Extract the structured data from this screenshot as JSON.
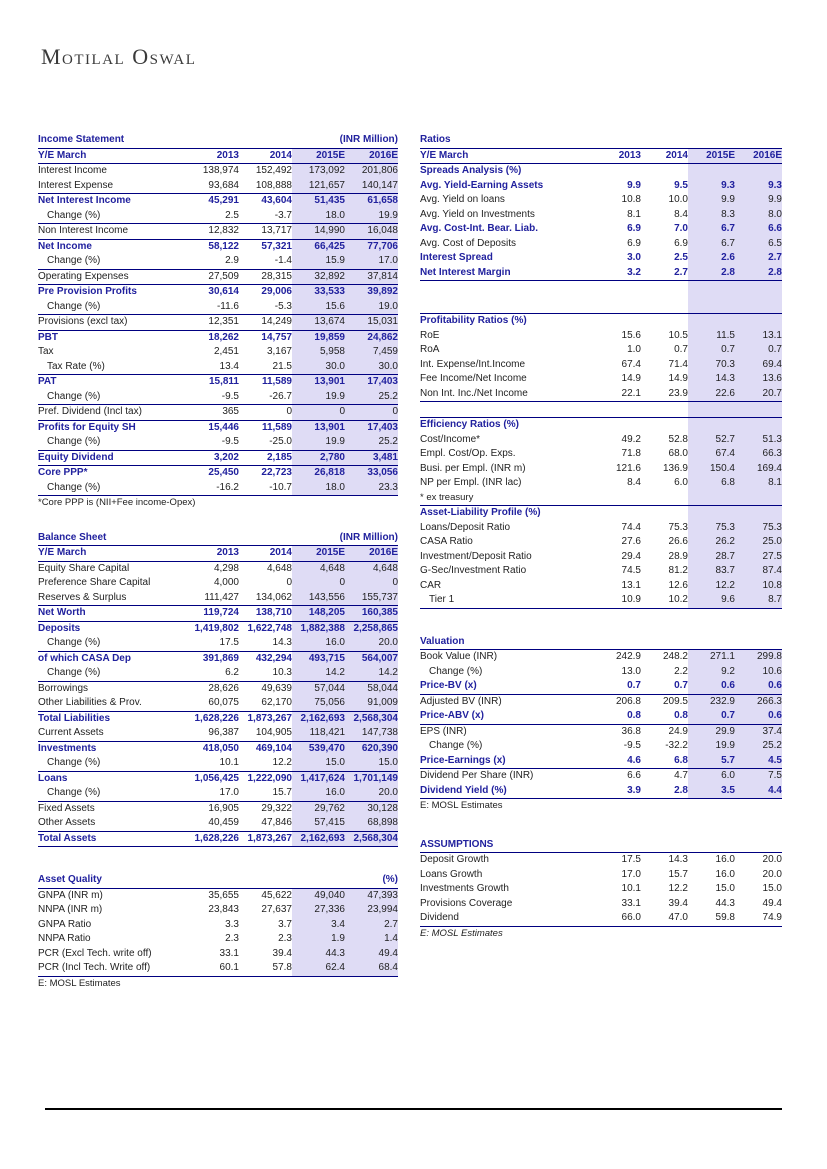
{
  "logo_text": "Motilal Oswal",
  "colors": {
    "accent_navy": "#21219e",
    "border_navy": "#000080",
    "highlight_lavender": "#dfdcf5",
    "footer_rule_black": "#000000"
  },
  "year_columns": [
    "2013",
    "2014",
    "2015E",
    "2016E"
  ],
  "tables": [
    {
      "id": "income-statement",
      "col": "left",
      "title": "Income Statement",
      "unit": "(INR Million)",
      "header_label": "Y/E March",
      "show_years": true,
      "hl": true,
      "margin_top": 0,
      "rows": [
        {
          "label": "Interest Income",
          "v": [
            "138,974",
            "152,492",
            "173,092",
            "201,806"
          ]
        },
        {
          "label": "Interest Expense",
          "v": [
            "93,684",
            "108,888",
            "121,657",
            "140,147"
          ]
        },
        {
          "label": "Net Interest Income",
          "v": [
            "45,291",
            "43,604",
            "51,435",
            "61,658"
          ],
          "b": 1,
          "bt": 1
        },
        {
          "label": "Change (%)",
          "v": [
            "2.5",
            "-3.7",
            "18.0",
            "19.9"
          ],
          "ind": 1
        },
        {
          "label": "Non Interest Income",
          "v": [
            "12,832",
            "13,717",
            "14,990",
            "16,048"
          ],
          "bt": 1
        },
        {
          "label": "Net Income",
          "v": [
            "58,122",
            "57,321",
            "66,425",
            "77,706"
          ],
          "b": 1,
          "bt": 1
        },
        {
          "label": "Change (%)",
          "v": [
            "2.9",
            "-1.4",
            "15.9",
            "17.0"
          ],
          "ind": 1
        },
        {
          "label": "Operating Expenses",
          "v": [
            "27,509",
            "28,315",
            "32,892",
            "37,814"
          ],
          "bt": 1
        },
        {
          "label": "Pre Provision Profits",
          "v": [
            "30,614",
            "29,006",
            "33,533",
            "39,892"
          ],
          "b": 1,
          "bt": 1
        },
        {
          "label": "Change (%)",
          "v": [
            "-11.6",
            "-5.3",
            "15.6",
            "19.0"
          ],
          "ind": 1
        },
        {
          "label": "Provisions (excl tax)",
          "v": [
            "12,351",
            "14,249",
            "13,674",
            "15,031"
          ],
          "bt": 1
        },
        {
          "label": "PBT",
          "v": [
            "18,262",
            "14,757",
            "19,859",
            "24,862"
          ],
          "b": 1,
          "bt": 1
        },
        {
          "label": "Tax",
          "v": [
            "2,451",
            "3,167",
            "5,958",
            "7,459"
          ]
        },
        {
          "label": "Tax Rate (%)",
          "v": [
            "13.4",
            "21.5",
            "30.0",
            "30.0"
          ],
          "ind": 1
        },
        {
          "label": "PAT",
          "v": [
            "15,811",
            "11,589",
            "13,901",
            "17,403"
          ],
          "b": 1,
          "bt": 1
        },
        {
          "label": "Change (%)",
          "v": [
            "-9.5",
            "-26.7",
            "19.9",
            "25.2"
          ],
          "ind": 1
        },
        {
          "label": "Pref. Dividend (Incl tax)",
          "v": [
            "365",
            "0",
            "0",
            "0"
          ],
          "bt": 1
        },
        {
          "label": "Profits for Equity SH",
          "v": [
            "15,446",
            "11,589",
            "13,901",
            "17,403"
          ],
          "b": 1,
          "bt": 1
        },
        {
          "label": "Change (%)",
          "v": [
            "-9.5",
            "-25.0",
            "19.9",
            "25.2"
          ],
          "ind": 1
        },
        {
          "label": "Equity Dividend",
          "v": [
            "3,202",
            "2,185",
            "2,780",
            "3,481"
          ],
          "b": 1,
          "bt": 1
        },
        {
          "label": "Core PPP*",
          "v": [
            "25,450",
            "22,723",
            "26,818",
            "33,056"
          ],
          "b": 1,
          "bt": 1
        },
        {
          "label": "Change (%)",
          "v": [
            "-16.2",
            "-10.7",
            "18.0",
            "23.3"
          ],
          "ind": 1,
          "bb": 1
        }
      ],
      "footnotes": [
        {
          "text": "*Core PPP is (NII+Fee income-Opex)",
          "italic": false
        }
      ]
    },
    {
      "id": "balance-sheet",
      "col": "left",
      "title": "Balance Sheet",
      "unit": "(INR Million)",
      "header_label": "Y/E March",
      "show_years": true,
      "hl": true,
      "margin_top": 20,
      "rows": [
        {
          "label": "Equity Share Capital",
          "v": [
            "4,298",
            "4,648",
            "4,648",
            "4,648"
          ]
        },
        {
          "label": "Preference Share Capital",
          "v": [
            "4,000",
            "0",
            "0",
            "0"
          ]
        },
        {
          "label": "Reserves & Surplus",
          "v": [
            "111,427",
            "134,062",
            "143,556",
            "155,737"
          ]
        },
        {
          "label": "Net Worth",
          "v": [
            "119,724",
            "138,710",
            "148,205",
            "160,385"
          ],
          "b": 1,
          "bt": 1
        },
        {
          "label": "Deposits",
          "v": [
            "1,419,802",
            "1,622,748",
            "1,882,388",
            "2,258,865"
          ],
          "b": 1,
          "bt": 1
        },
        {
          "label": "Change (%)",
          "v": [
            "17.5",
            "14.3",
            "16.0",
            "20.0"
          ],
          "ind": 1
        },
        {
          "label": "of which CASA Dep",
          "v": [
            "391,869",
            "432,294",
            "493,715",
            "564,007"
          ],
          "b": 1,
          "bt": 1
        },
        {
          "label": "Change (%)",
          "v": [
            "6.2",
            "10.3",
            "14.2",
            "14.2"
          ],
          "ind": 1
        },
        {
          "label": "Borrowings",
          "v": [
            "28,626",
            "49,639",
            "57,044",
            "58,044"
          ],
          "bt": 1
        },
        {
          "label": "Other Liabilities & Prov.",
          "v": [
            "60,075",
            "62,170",
            "75,056",
            "91,009"
          ]
        },
        {
          "label": "Total Liabilities",
          "v": [
            "1,628,226",
            "1,873,267",
            "2,162,693",
            "2,568,304"
          ],
          "b": 1,
          "bt": 1
        },
        {
          "label": "Current Assets",
          "v": [
            "96,387",
            "104,905",
            "118,421",
            "147,738"
          ]
        },
        {
          "label": "Investments",
          "v": [
            "418,050",
            "469,104",
            "539,470",
            "620,390"
          ],
          "b": 1,
          "bt": 1
        },
        {
          "label": "Change (%)",
          "v": [
            "10.1",
            "12.2",
            "15.0",
            "15.0"
          ],
          "ind": 1
        },
        {
          "label": "Loans",
          "v": [
            "1,056,425",
            "1,222,090",
            "1,417,624",
            "1,701,149"
          ],
          "b": 1,
          "bt": 1
        },
        {
          "label": "Change (%)",
          "v": [
            "17.0",
            "15.7",
            "16.0",
            "20.0"
          ],
          "ind": 1
        },
        {
          "label": "Fixed Assets",
          "v": [
            "16,905",
            "29,322",
            "29,762",
            "30,128"
          ],
          "bt": 1
        },
        {
          "label": "Other Assets",
          "v": [
            "40,459",
            "47,846",
            "57,415",
            "68,898"
          ]
        },
        {
          "label": "Total Assets",
          "v": [
            "1,628,226",
            "1,873,267",
            "2,162,693",
            "2,568,304"
          ],
          "b": 1,
          "bt": 1,
          "bb": 1
        }
      ],
      "footnotes": []
    },
    {
      "id": "asset-quality",
      "col": "left",
      "title": "Asset Quality",
      "unit": "(%)",
      "header_label": "",
      "show_years": false,
      "hl": true,
      "margin_top": 26,
      "rows": [
        {
          "label": "GNPA (INR m)",
          "v": [
            "35,655",
            "45,622",
            "49,040",
            "47,393"
          ]
        },
        {
          "label": "NNPA (INR m)",
          "v": [
            "23,843",
            "27,637",
            "27,336",
            "23,994"
          ]
        },
        {
          "label": "GNPA Ratio",
          "v": [
            "3.3",
            "3.7",
            "3.4",
            "2.7"
          ]
        },
        {
          "label": "NNPA Ratio",
          "v": [
            "2.3",
            "2.3",
            "1.9",
            "1.4"
          ]
        },
        {
          "label": "PCR (Excl Tech. write off)",
          "v": [
            "33.1",
            "39.4",
            "44.3",
            "49.4"
          ]
        },
        {
          "label": "PCR (Incl Tech. Write off)",
          "v": [
            "60.1",
            "57.8",
            "62.4",
            "68.4"
          ],
          "bb": 1
        }
      ],
      "footnotes": [
        {
          "text": "E: MOSL Estimates",
          "italic": false
        }
      ]
    },
    {
      "id": "ratios",
      "col": "right",
      "title": "Ratios",
      "unit": "",
      "header_label": "Y/E March",
      "show_years": true,
      "hl": true,
      "margin_top": 0,
      "rows": [
        {
          "type": "section",
          "label": "Spreads Analysis (%)"
        },
        {
          "label": "Avg. Yield-Earning Assets",
          "v": [
            "9.9",
            "9.5",
            "9.3",
            "9.3"
          ],
          "b": 1
        },
        {
          "label": "Avg. Yield on loans",
          "v": [
            "10.8",
            "10.0",
            "9.9",
            "9.9"
          ]
        },
        {
          "label": "Avg. Yield on Investments",
          "v": [
            "8.1",
            "8.4",
            "8.3",
            "8.0"
          ]
        },
        {
          "label": "Avg. Cost-Int. Bear. Liab.",
          "v": [
            "6.9",
            "7.0",
            "6.7",
            "6.6"
          ],
          "b": 1
        },
        {
          "label": "Avg. Cost of Deposits",
          "v": [
            "6.9",
            "6.9",
            "6.7",
            "6.5"
          ]
        },
        {
          "label": "Interest Spread",
          "v": [
            "3.0",
            "2.5",
            "2.6",
            "2.7"
          ],
          "b": 1
        },
        {
          "label": "Net Interest Margin",
          "v": [
            "3.2",
            "2.7",
            "2.8",
            "2.8"
          ],
          "b": 1,
          "bb": 1
        },
        {
          "type": "gap",
          "h": 32
        },
        {
          "type": "section",
          "label": "Profitability Ratios (%)",
          "bt": 1
        },
        {
          "label": "RoE",
          "v": [
            "15.6",
            "10.5",
            "11.5",
            "13.1"
          ]
        },
        {
          "label": "RoA",
          "v": [
            "1.0",
            "0.7",
            "0.7",
            "0.7"
          ]
        },
        {
          "label": "Int. Expense/Int.Income",
          "v": [
            "67.4",
            "71.4",
            "70.3",
            "69.4"
          ]
        },
        {
          "label": "Fee Income/Net Income",
          "v": [
            "14.9",
            "14.9",
            "14.3",
            "13.6"
          ]
        },
        {
          "label": "Non Int. Inc./Net Income",
          "v": [
            "22.1",
            "23.9",
            "22.6",
            "20.7"
          ],
          "bb": 1
        },
        {
          "type": "gap",
          "h": 15
        },
        {
          "type": "section",
          "label": "Efficiency Ratios (%)",
          "bt": 1
        },
        {
          "label": "Cost/Income*",
          "v": [
            "49.2",
            "52.8",
            "52.7",
            "51.3"
          ]
        },
        {
          "label": "Empl. Cost/Op. Exps.",
          "v": [
            "71.8",
            "68.0",
            "67.4",
            "66.3"
          ]
        },
        {
          "label": "Busi. per Empl. (INR m)",
          "v": [
            "121.6",
            "136.9",
            "150.4",
            "169.4"
          ]
        },
        {
          "label": "NP per Empl. (INR lac)",
          "v": [
            "8.4",
            "6.0",
            "6.8",
            "8.1"
          ]
        },
        {
          "type": "inline-note",
          "label": "* ex treasury",
          "bb": 1
        },
        {
          "type": "section",
          "label": "Asset-Liability Profile (%)"
        },
        {
          "label": "Loans/Deposit Ratio",
          "v": [
            "74.4",
            "75.3",
            "75.3",
            "75.3"
          ]
        },
        {
          "label": "CASA Ratio",
          "v": [
            "27.6",
            "26.6",
            "26.2",
            "25.0"
          ]
        },
        {
          "label": "Investment/Deposit Ratio",
          "v": [
            "29.4",
            "28.9",
            "28.7",
            "27.5"
          ]
        },
        {
          "label": "G-Sec/Investment Ratio",
          "v": [
            "74.5",
            "81.2",
            "83.7",
            "87.4"
          ]
        },
        {
          "label": "CAR",
          "v": [
            "13.1",
            "12.6",
            "12.2",
            "10.8"
          ]
        },
        {
          "label": "Tier 1",
          "v": [
            "10.9",
            "10.2",
            "9.6",
            "8.7"
          ],
          "ind": 1,
          "bb": 1
        }
      ],
      "footnotes": []
    },
    {
      "id": "valuation",
      "col": "right",
      "title": "Valuation",
      "unit": "",
      "header_label": "",
      "show_years": false,
      "hl": true,
      "margin_top": 26,
      "rows": [
        {
          "label": "Book Value (INR)",
          "v": [
            "242.9",
            "248.2",
            "271.1",
            "299.8"
          ]
        },
        {
          "label": "Change (%)",
          "v": [
            "13.0",
            "2.2",
            "9.2",
            "10.6"
          ],
          "ind": 1
        },
        {
          "label": "Price-BV (x)",
          "v": [
            "0.7",
            "0.7",
            "0.6",
            "0.6"
          ],
          "b": 1
        },
        {
          "label": "Adjusted BV (INR)",
          "v": [
            "206.8",
            "209.5",
            "232.9",
            "266.3"
          ],
          "bt": 1
        },
        {
          "label": "Price-ABV (x)",
          "v": [
            "0.8",
            "0.8",
            "0.7",
            "0.6"
          ],
          "b": 1
        },
        {
          "label": "EPS (INR)",
          "v": [
            "36.8",
            "24.9",
            "29.9",
            "37.4"
          ],
          "bt": 1
        },
        {
          "label": "Change (%)",
          "v": [
            "-9.5",
            "-32.2",
            "19.9",
            "25.2"
          ],
          "ind": 1
        },
        {
          "label": "Price-Earnings (x)",
          "v": [
            "4.6",
            "6.8",
            "5.7",
            "4.5"
          ],
          "b": 1
        },
        {
          "label": "Dividend Per Share (INR)",
          "v": [
            "6.6",
            "4.7",
            "6.0",
            "7.5"
          ],
          "bt": 1
        },
        {
          "label": "Dividend Yield (%)",
          "v": [
            "3.9",
            "2.8",
            "3.5",
            "4.4"
          ],
          "b": 1,
          "bb": 1
        }
      ],
      "footnotes": [
        {
          "text": "E: MOSL Estimates",
          "italic": false
        }
      ]
    },
    {
      "id": "assumptions",
      "col": "right",
      "title": "ASSUMPTIONS",
      "unit": "",
      "header_label": "",
      "show_years": false,
      "hl": false,
      "margin_top": 24,
      "rows": [
        {
          "label": "Deposit Growth",
          "v": [
            "17.5",
            "14.3",
            "16.0",
            "20.0"
          ]
        },
        {
          "label": "Loans Growth",
          "v": [
            "17.0",
            "15.7",
            "16.0",
            "20.0"
          ]
        },
        {
          "label": "Investments Growth",
          "v": [
            "10.1",
            "12.2",
            "15.0",
            "15.0"
          ]
        },
        {
          "label": "Provisions Coverage",
          "v": [
            "33.1",
            "39.4",
            "44.3",
            "49.4"
          ]
        },
        {
          "label": "Dividend",
          "v": [
            "66.0",
            "47.0",
            "59.8",
            "74.9"
          ],
          "bb": 1
        }
      ],
      "footnotes": [
        {
          "text": "E: MOSL Estimates",
          "italic": true
        }
      ]
    }
  ]
}
